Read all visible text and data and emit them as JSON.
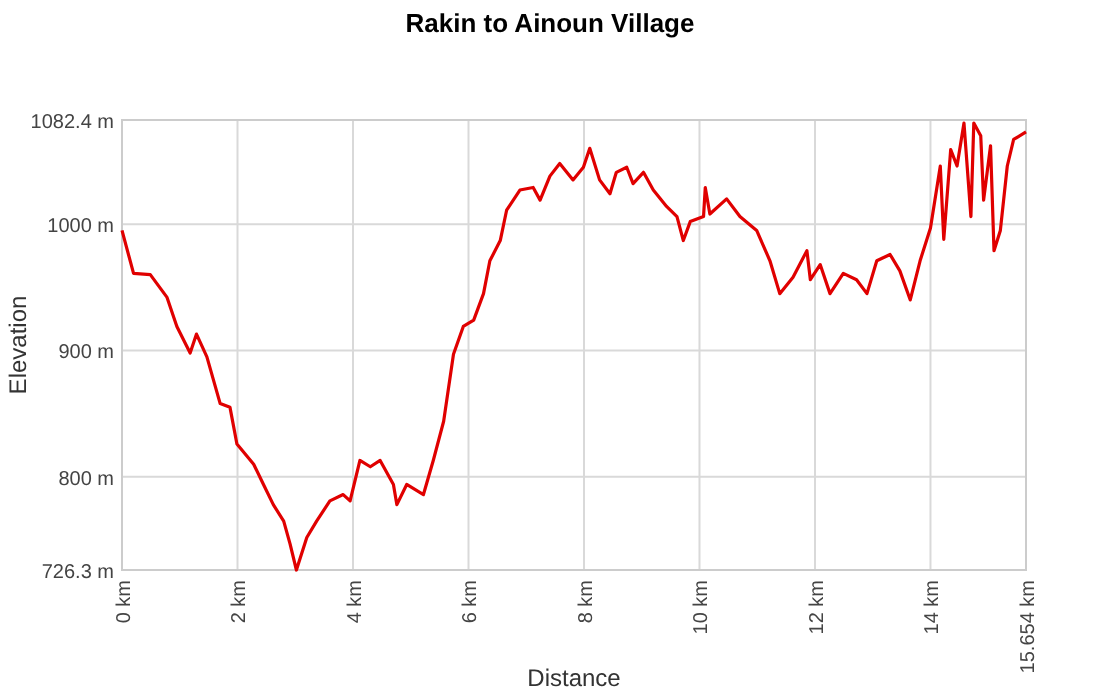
{
  "chart_data": {
    "type": "line",
    "title": "Rakin to Ainoun Village",
    "xlabel": "Distance",
    "ylabel": "Elevation",
    "xlim": [
      0,
      15.654
    ],
    "xticks": [
      {
        "value": 0,
        "label": "0 km"
      },
      {
        "value": 2,
        "label": "2 km"
      },
      {
        "value": 4,
        "label": "4 km"
      },
      {
        "value": 6,
        "label": "6 km"
      },
      {
        "value": 8,
        "label": "8 km"
      },
      {
        "value": 10,
        "label": "10 km"
      },
      {
        "value": 12,
        "label": "12 km"
      },
      {
        "value": 14,
        "label": "14 km"
      },
      {
        "value": 15.654,
        "label": "15.654 km"
      }
    ],
    "ylim": [
      726.3,
      1082.4
    ],
    "yticks": [
      {
        "value": 726.3,
        "label": "726.3 m"
      },
      {
        "value": 800,
        "label": "800 m"
      },
      {
        "value": 900,
        "label": "900 m"
      },
      {
        "value": 1000,
        "label": "1000 m"
      },
      {
        "value": 1082.4,
        "label": "1082.4 m"
      }
    ],
    "grid": true,
    "marker": "none",
    "line_style": "solid",
    "series": [
      {
        "color": "#e00000",
        "x": [
          0,
          0.2,
          0.49,
          0.78,
          0.95,
          1.18,
          1.29,
          1.47,
          1.7,
          1.87,
          1.99,
          2.28,
          2.45,
          2.62,
          2.8,
          2.91,
          3.02,
          3.2,
          3.37,
          3.6,
          3.83,
          3.95,
          4.12,
          4.3,
          4.47,
          4.7,
          4.76,
          4.93,
          5.22,
          5.39,
          5.57,
          5.74,
          5.91,
          6.09,
          6.26,
          6.37,
          6.55,
          6.66,
          6.89,
          7.12,
          7.24,
          7.41,
          7.58,
          7.81,
          7.99,
          8.1,
          8.27,
          8.45,
          8.56,
          8.74,
          8.85,
          9.03,
          9.2,
          9.43,
          9.61,
          9.72,
          9.84,
          10.07,
          10.1,
          10.18,
          10.47,
          10.7,
          10.99,
          11.22,
          11.39,
          11.62,
          11.86,
          11.92,
          12.09,
          12.26,
          12.49,
          12.72,
          12.9,
          13.07,
          13.3,
          13.47,
          13.65,
          13.82,
          14.0,
          14.17,
          14.23,
          14.35,
          14.46,
          14.58,
          14.7,
          14.75,
          14.87,
          14.92,
          15.04,
          15.1,
          15.21,
          15.33,
          15.44,
          15.654
        ],
        "values": [
          995,
          961,
          960,
          942,
          919,
          898,
          913,
          895,
          858,
          855,
          826,
          810,
          794,
          778,
          765,
          747,
          726.3,
          752,
          765,
          781,
          786,
          781,
          813,
          808,
          813,
          794,
          778,
          794,
          786,
          813,
          844,
          897,
          919,
          924,
          945,
          971,
          987,
          1011,
          1027,
          1029,
          1019,
          1038,
          1048,
          1035,
          1045,
          1060,
          1035,
          1024,
          1041,
          1045,
          1032,
          1041,
          1027,
          1014,
          1006,
          987,
          1002,
          1006,
          1029,
          1008,
          1020,
          1006,
          995,
          971,
          945,
          958,
          979,
          956,
          968,
          945,
          961,
          956,
          945,
          971,
          976,
          963,
          940,
          971,
          997,
          1046,
          988,
          1059,
          1046,
          1080,
          1006,
          1080,
          1070,
          1019,
          1062,
          979,
          995,
          1046,
          1067,
          1073
        ]
      }
    ]
  }
}
